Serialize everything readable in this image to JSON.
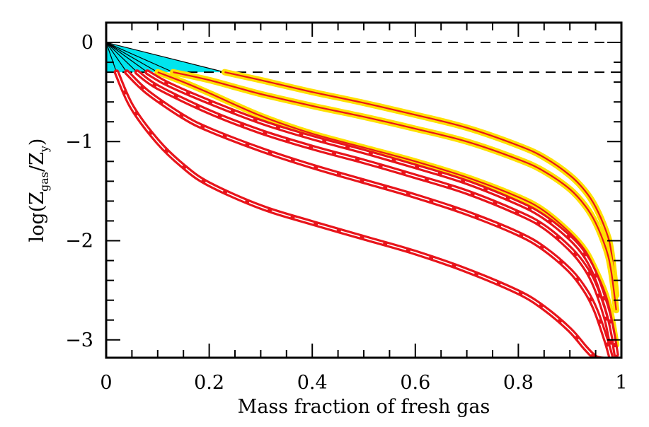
{
  "chart_data": {
    "type": "line",
    "xlabel": "Mass fraction of fresh gas",
    "ylabel_main": "log(Z",
    "ylabel_sub1": "gas",
    "ylabel_mid": "/Z",
    "ylabel_sub2": "y",
    "ylabel_end": ")",
    "xlim": [
      0,
      1
    ],
    "ylim": [
      -3.18,
      0.2
    ],
    "x_ticks": [
      0,
      0.2,
      0.4,
      0.6,
      0.8,
      1
    ],
    "x_tick_labels": [
      "0",
      "0.2",
      "0.4",
      "0.6",
      "0.8",
      "1"
    ],
    "y_ticks": [
      0,
      -1,
      -2,
      -3
    ],
    "y_tick_labels": [
      "0",
      "−1",
      "−2",
      "−3"
    ],
    "reference_lines": [
      0,
      -0.3
    ],
    "shaded_region": {
      "color": "#00e5ee",
      "x_range": [
        0,
        0.23
      ],
      "y_range": [
        -0.3,
        0
      ]
    },
    "colors": {
      "yellow_band": "#ffe000",
      "red_curve": "#e8141b",
      "cyan_fill": "#00e5ee",
      "dark_line": "#000000"
    },
    "series": [
      {
        "style": "yellow",
        "x": [
          0.23,
          0.3,
          0.4,
          0.5,
          0.6,
          0.7,
          0.8,
          0.85,
          0.9,
          0.93,
          0.95,
          0.97,
          0.98,
          0.99
        ],
        "y": [
          -0.3,
          -0.38,
          -0.5,
          -0.61,
          -0.73,
          -0.86,
          -1.04,
          -1.16,
          -1.34,
          -1.5,
          -1.66,
          -1.9,
          -2.1,
          -2.55
        ]
      },
      {
        "style": "yellow",
        "x": [
          0.13,
          0.2,
          0.3,
          0.4,
          0.5,
          0.6,
          0.7,
          0.8,
          0.85,
          0.9,
          0.93,
          0.95,
          0.97,
          0.98,
          0.99
        ],
        "y": [
          -0.3,
          -0.38,
          -0.52,
          -0.64,
          -0.75,
          -0.87,
          -1.0,
          -1.18,
          -1.3,
          -1.48,
          -1.65,
          -1.82,
          -2.08,
          -2.3,
          -2.7
        ]
      },
      {
        "style": "yellow",
        "x": [
          0.1,
          0.15,
          0.2,
          0.3,
          0.4,
          0.5,
          0.6,
          0.7,
          0.8,
          0.85,
          0.9,
          0.93,
          0.95,
          0.97,
          0.98,
          0.99
        ],
        "y": [
          -0.3,
          -0.4,
          -0.51,
          -0.74,
          -0.92,
          -1.06,
          -1.2,
          -1.36,
          -1.56,
          -1.7,
          -1.92,
          -2.1,
          -2.3,
          -2.55,
          -2.75,
          -3.05
        ]
      },
      {
        "style": "red",
        "x": [
          0.08,
          0.12,
          0.2,
          0.3,
          0.4,
          0.5,
          0.6,
          0.7,
          0.8,
          0.85,
          0.9,
          0.93,
          0.95,
          0.97,
          0.98,
          0.99
        ],
        "y": [
          -0.3,
          -0.42,
          -0.6,
          -0.8,
          -0.96,
          -1.1,
          -1.25,
          -1.41,
          -1.62,
          -1.76,
          -1.97,
          -2.15,
          -2.35,
          -2.65,
          -2.85,
          -3.15
        ]
      },
      {
        "style": "red",
        "x": [
          0.06,
          0.1,
          0.2,
          0.3,
          0.4,
          0.5,
          0.6,
          0.7,
          0.8,
          0.85,
          0.9,
          0.93,
          0.95,
          0.97,
          0.98
        ],
        "y": [
          -0.3,
          -0.45,
          -0.7,
          -0.9,
          -1.06,
          -1.2,
          -1.35,
          -1.51,
          -1.72,
          -1.86,
          -2.08,
          -2.27,
          -2.47,
          -2.78,
          -3.02
        ]
      },
      {
        "style": "red",
        "x": [
          0.04,
          0.08,
          0.15,
          0.2,
          0.3,
          0.4,
          0.5,
          0.6,
          0.7,
          0.8,
          0.85,
          0.9,
          0.93,
          0.95,
          0.97,
          0.98
        ],
        "y": [
          -0.3,
          -0.5,
          -0.75,
          -0.88,
          -1.08,
          -1.25,
          -1.4,
          -1.55,
          -1.72,
          -1.93,
          -2.08,
          -2.3,
          -2.5,
          -2.7,
          -3.0,
          -3.18
        ]
      },
      {
        "style": "red",
        "x": [
          0.02,
          0.05,
          0.1,
          0.15,
          0.2,
          0.3,
          0.4,
          0.5,
          0.6,
          0.7,
          0.8,
          0.85,
          0.9,
          0.93,
          0.95,
          0.97
        ],
        "y": [
          -0.3,
          -0.65,
          -1.0,
          -1.25,
          -1.43,
          -1.66,
          -1.82,
          -1.97,
          -2.12,
          -2.3,
          -2.52,
          -2.68,
          -2.9,
          -3.08,
          -3.18,
          -3.2
        ]
      }
    ]
  }
}
